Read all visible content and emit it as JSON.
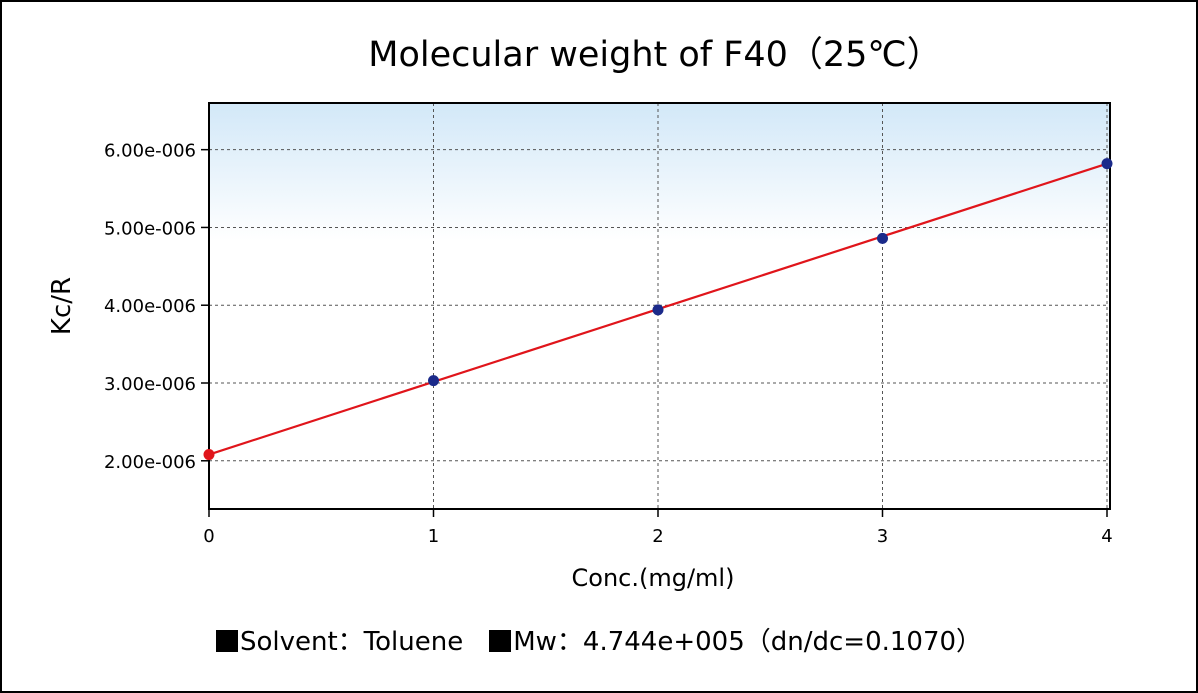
{
  "colors": {
    "line": "#e0151b",
    "point": "#1b2a8a",
    "intercept_point": "#e0151b",
    "plot_fill_top": "#d2e8f8",
    "plot_fill_bottom": "#ffffff"
  },
  "chart_data": {
    "type": "scatter",
    "title": "Molecular weight of F40（25℃）",
    "xlabel": "Conc.(mg/ml)",
    "ylabel": "Kc/R",
    "xlim": [
      0,
      4
    ],
    "ylim": [
      1.38e-06,
      6.6e-06
    ],
    "x_ticks": [
      "0",
      "1",
      "2",
      "3",
      "4"
    ],
    "x_tick_values": [
      0,
      1,
      2,
      3,
      4
    ],
    "y_ticks": [
      "2.00e-006",
      "3.00e-006",
      "4.00e-006",
      "5.00e-006",
      "6.00e-006"
    ],
    "y_tick_values": [
      2e-06,
      3e-06,
      4e-06,
      5e-06,
      6e-06
    ],
    "grid": true,
    "series": [
      {
        "x": [
          1,
          2,
          3,
          4
        ],
        "y": [
          3.03e-06,
          3.94e-06,
          4.86e-06,
          5.82e-06
        ]
      }
    ],
    "fit_line": {
      "x": [
        0,
        4
      ],
      "y": [
        2.08e-06,
        5.82e-06
      ]
    },
    "intercept_point": {
      "x": 0,
      "y": 2.08e-06
    }
  },
  "footer": {
    "solvent_label": "Solvent：Toluene",
    "mw_label": "Mw：4.744e+005（dn/dc=0.1070）"
  }
}
